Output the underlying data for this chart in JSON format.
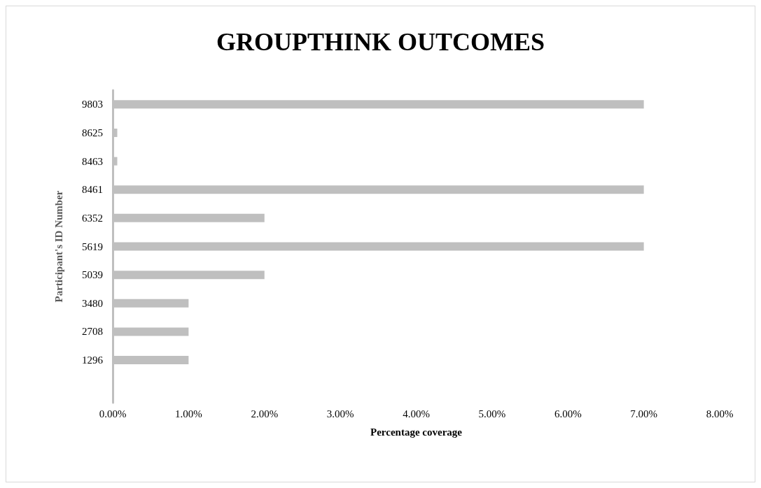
{
  "chart_data": {
    "type": "bar",
    "orientation": "horizontal",
    "title": "GROUPTHINK OUTCOMES",
    "xlabel": "Percentage coverage",
    "ylabel": "Participant's ID Number",
    "categories": [
      "9803",
      "8625",
      "8463",
      "8461",
      "6352",
      "5619",
      "5039",
      "3480",
      "2708",
      "1296",
      null
    ],
    "values": [
      7.0,
      0.06,
      0.06,
      7.0,
      2.0,
      7.0,
      2.0,
      1.0,
      1.0,
      1.0,
      null
    ],
    "color": "#bfbfbf",
    "xlim": [
      0,
      8
    ],
    "xticks": [
      {
        "value": 0,
        "label": "0.00%"
      },
      {
        "value": 1,
        "label": "1.00%"
      },
      {
        "value": 2,
        "label": "2.00%"
      },
      {
        "value": 3,
        "label": "3.00%"
      },
      {
        "value": 4,
        "label": "4.00%"
      },
      {
        "value": 5,
        "label": "5.00%"
      },
      {
        "value": 6,
        "label": "6.00%"
      },
      {
        "value": 7,
        "label": "7.00%"
      },
      {
        "value": 8,
        "label": "8.00%"
      }
    ],
    "grid": false
  }
}
